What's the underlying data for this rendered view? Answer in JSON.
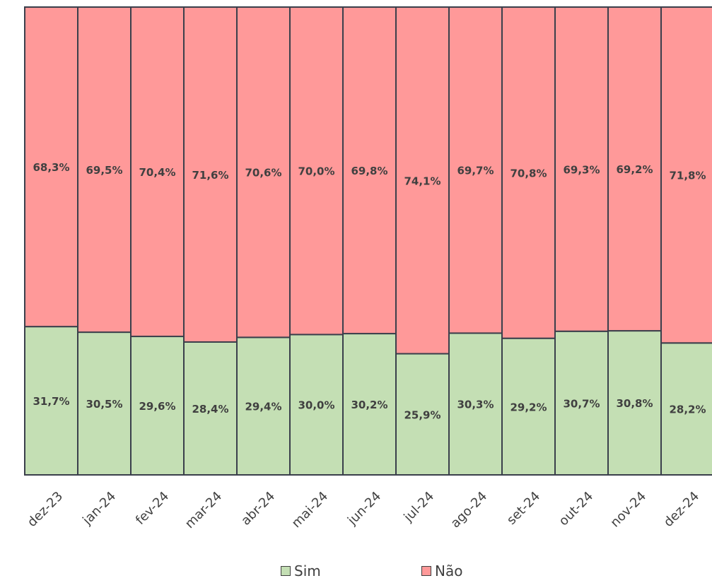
{
  "chart_data": {
    "type": "bar",
    "stacked": "percent",
    "categories": [
      "dez-23",
      "jan-24",
      "fev-24",
      "mar-24",
      "abr-24",
      "mai-24",
      "jun-24",
      "jul-24",
      "ago-24",
      "set-24",
      "out-24",
      "nov-24",
      "dez-24"
    ],
    "series": [
      {
        "name": "Sim",
        "color": "#c4dfb4",
        "values": [
          31.7,
          30.5,
          29.6,
          28.4,
          29.4,
          30.0,
          30.2,
          25.9,
          30.3,
          29.2,
          30.7,
          30.8,
          28.2
        ],
        "labels": [
          "31,7%",
          "30,5%",
          "29,6%",
          "28,4%",
          "29,4%",
          "30,0%",
          "30,2%",
          "25,9%",
          "30,3%",
          "29,2%",
          "30,7%",
          "30,8%",
          "28,2%"
        ]
      },
      {
        "name": "Não",
        "color": "#ff9999",
        "values": [
          68.3,
          69.5,
          70.4,
          71.6,
          70.6,
          70.0,
          69.8,
          74.1,
          69.7,
          70.8,
          69.3,
          69.2,
          71.8
        ],
        "labels": [
          "68,3%",
          "69,5%",
          "70,4%",
          "71,6%",
          "70,6%",
          "70,0%",
          "69,8%",
          "74,1%",
          "69,7%",
          "70,8%",
          "69,3%",
          "69,2%",
          "71,8%"
        ]
      }
    ],
    "ylim": [
      0,
      100
    ],
    "legend_position": "bottom",
    "grid": false
  }
}
